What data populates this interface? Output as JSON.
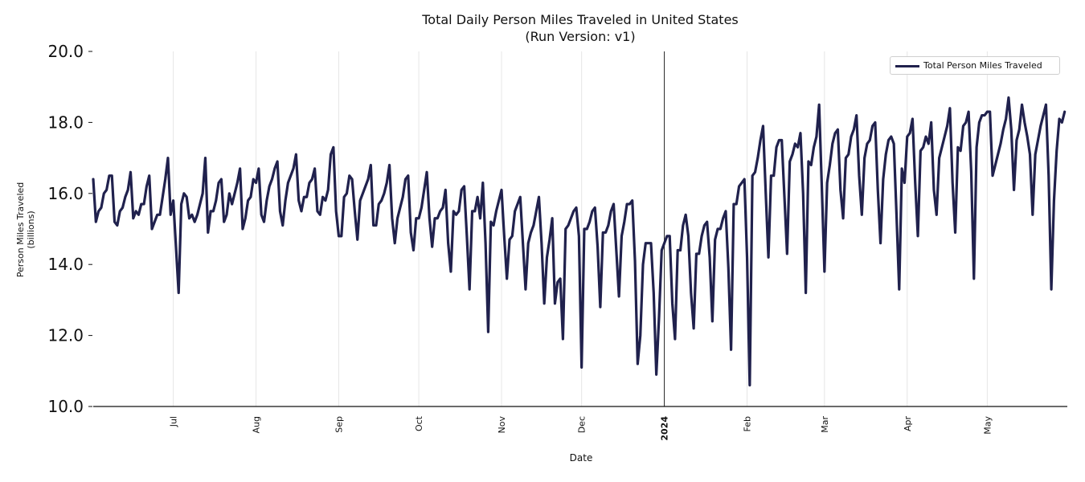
{
  "colors": {
    "line": "#20214d",
    "grid": "#e6e6e6",
    "axis": "#111111"
  },
  "chart_data": {
    "type": "line",
    "title": "Total Daily Person Miles Traveled in United States",
    "subtitle": "(Run Version: v1)",
    "xlabel": "Date",
    "ylabel": "Person Miles Traveled",
    "ylabel_unit": "(billions)",
    "ylim": [
      10.0,
      20.0
    ],
    "xlim": [
      "2023-06-01",
      "2024-05-31"
    ],
    "yticks": [
      {
        "value": 10.0,
        "label": "10.0"
      },
      {
        "value": 12.0,
        "label": "12.0"
      },
      {
        "value": 14.0,
        "label": "14.0"
      },
      {
        "value": 16.0,
        "label": "16.0"
      },
      {
        "value": 18.0,
        "label": "18.0"
      },
      {
        "value": 20.0,
        "label": "20.0"
      }
    ],
    "xticks": [
      {
        "date": "2023-07-01",
        "label": "Jul",
        "bold": false
      },
      {
        "date": "2023-08-01",
        "label": "Aug",
        "bold": false
      },
      {
        "date": "2023-09-01",
        "label": "Sep",
        "bold": false
      },
      {
        "date": "2023-10-01",
        "label": "Oct",
        "bold": false
      },
      {
        "date": "2023-11-01",
        "label": "Nov",
        "bold": false
      },
      {
        "date": "2023-12-01",
        "label": "Dec",
        "bold": false
      },
      {
        "date": "2024-01-01",
        "label": "2024",
        "bold": true
      },
      {
        "date": "2024-02-01",
        "label": "Feb",
        "bold": false
      },
      {
        "date": "2024-03-01",
        "label": "Mar",
        "bold": false
      },
      {
        "date": "2024-04-01",
        "label": "Apr",
        "bold": false
      },
      {
        "date": "2024-05-01",
        "label": "May",
        "bold": false
      }
    ],
    "grid": "vertical",
    "year_marker": "2024-01-01",
    "legend": {
      "position": "top-right",
      "entries": [
        "Total Person Miles Traveled"
      ]
    },
    "series": [
      {
        "name": "Total Person Miles Traveled",
        "start_date": "2023-06-01",
        "values": [
          16.4,
          15.2,
          15.5,
          15.6,
          16.0,
          16.1,
          16.5,
          16.5,
          15.2,
          15.1,
          15.5,
          15.6,
          15.9,
          16.1,
          16.6,
          15.3,
          15.5,
          15.4,
          15.7,
          15.7,
          16.2,
          16.5,
          15.0,
          15.2,
          15.4,
          15.4,
          15.9,
          16.4,
          17.0,
          15.4,
          15.8,
          14.5,
          13.2,
          15.7,
          16.0,
          15.9,
          15.3,
          15.4,
          15.2,
          15.4,
          15.7,
          16.0,
          17.0,
          14.9,
          15.5,
          15.5,
          15.8,
          16.3,
          16.4,
          15.2,
          15.4,
          16.0,
          15.7,
          16.0,
          16.3,
          16.7,
          15.0,
          15.3,
          15.8,
          15.9,
          16.4,
          16.3,
          16.7,
          15.4,
          15.2,
          15.8,
          16.2,
          16.4,
          16.7,
          16.9,
          15.5,
          15.1,
          15.8,
          16.3,
          16.5,
          16.7,
          17.1,
          15.8,
          15.5,
          15.9,
          15.9,
          16.3,
          16.4,
          16.7,
          15.5,
          15.4,
          15.9,
          15.8,
          16.1,
          17.1,
          17.3,
          15.5,
          14.8,
          14.8,
          15.9,
          16.0,
          16.5,
          16.4,
          15.5,
          14.7,
          15.8,
          16.0,
          16.2,
          16.4,
          16.8,
          15.1,
          15.1,
          15.7,
          15.8,
          16.0,
          16.3,
          16.8,
          15.3,
          14.6,
          15.3,
          15.6,
          15.9,
          16.4,
          16.5,
          14.9,
          14.4,
          15.3,
          15.3,
          15.6,
          16.1,
          16.6,
          15.3,
          14.5,
          15.3,
          15.3,
          15.5,
          15.6,
          16.1,
          14.6,
          13.8,
          15.5,
          15.4,
          15.5,
          16.1,
          16.2,
          14.8,
          13.3,
          15.5,
          15.5,
          15.9,
          15.3,
          16.3,
          14.6,
          12.1,
          15.2,
          15.1,
          15.5,
          15.8,
          16.1,
          14.8,
          13.6,
          14.7,
          14.8,
          15.5,
          15.7,
          15.9,
          14.6,
          13.3,
          14.6,
          14.9,
          15.1,
          15.5,
          15.9,
          14.6,
          12.9,
          14.2,
          14.7,
          15.3,
          12.9,
          13.5,
          13.6,
          11.9,
          15.0,
          15.1,
          15.3,
          15.5,
          15.6,
          14.8,
          11.1,
          15.0,
          15.0,
          15.2,
          15.5,
          15.6,
          14.5,
          12.8,
          14.9,
          14.9,
          15.1,
          15.5,
          15.7,
          14.4,
          13.1,
          14.8,
          15.2,
          15.7,
          15.7,
          15.8,
          14.1,
          11.2,
          12.0,
          14.0,
          14.6,
          14.6,
          14.6,
          13.2,
          10.9,
          12.5,
          14.4,
          14.6,
          14.8,
          14.8,
          12.9,
          11.9,
          14.4,
          14.4,
          15.1,
          15.4,
          14.8,
          13.2,
          12.2,
          14.3,
          14.3,
          14.8,
          15.1,
          15.2,
          14.2,
          12.4,
          14.7,
          15.0,
          15.0,
          15.3,
          15.5,
          13.9,
          11.6,
          15.7,
          15.7,
          16.2,
          16.3,
          16.4,
          14.2,
          10.6,
          16.5,
          16.6,
          17.0,
          17.5,
          17.9,
          16.0,
          14.2,
          16.5,
          16.5,
          17.3,
          17.5,
          17.5,
          15.9,
          14.3,
          16.9,
          17.1,
          17.4,
          17.3,
          17.7,
          16.0,
          13.2,
          16.9,
          16.8,
          17.3,
          17.6,
          18.5,
          16.2,
          13.8,
          16.3,
          16.8,
          17.4,
          17.7,
          17.8,
          16.1,
          15.3,
          17.0,
          17.1,
          17.6,
          17.8,
          18.2,
          16.5,
          15.4,
          17.0,
          17.4,
          17.5,
          17.9,
          18.0,
          16.1,
          14.6,
          16.4,
          17.1,
          17.5,
          17.6,
          17.4,
          15.4,
          13.3,
          16.7,
          16.3,
          17.6,
          17.7,
          18.1,
          16.3,
          14.8,
          17.2,
          17.3,
          17.6,
          17.4,
          18.0,
          16.1,
          15.4,
          17.0,
          17.3,
          17.6,
          17.9,
          18.4,
          16.3,
          14.9,
          17.3,
          17.2,
          17.9,
          18.0,
          18.3,
          16.6,
          13.6,
          17.3,
          18.0,
          18.2,
          18.2,
          18.3,
          18.3,
          16.5,
          16.8,
          17.1,
          17.4,
          17.8,
          18.1,
          18.7,
          17.8,
          16.1,
          17.5,
          17.8,
          18.5,
          18.0,
          17.6,
          17.1,
          15.4,
          17.1,
          17.5,
          17.9,
          18.2,
          18.5,
          16.5,
          13.3,
          15.8,
          17.2,
          18.1,
          18.0,
          18.3
        ]
      }
    ]
  }
}
